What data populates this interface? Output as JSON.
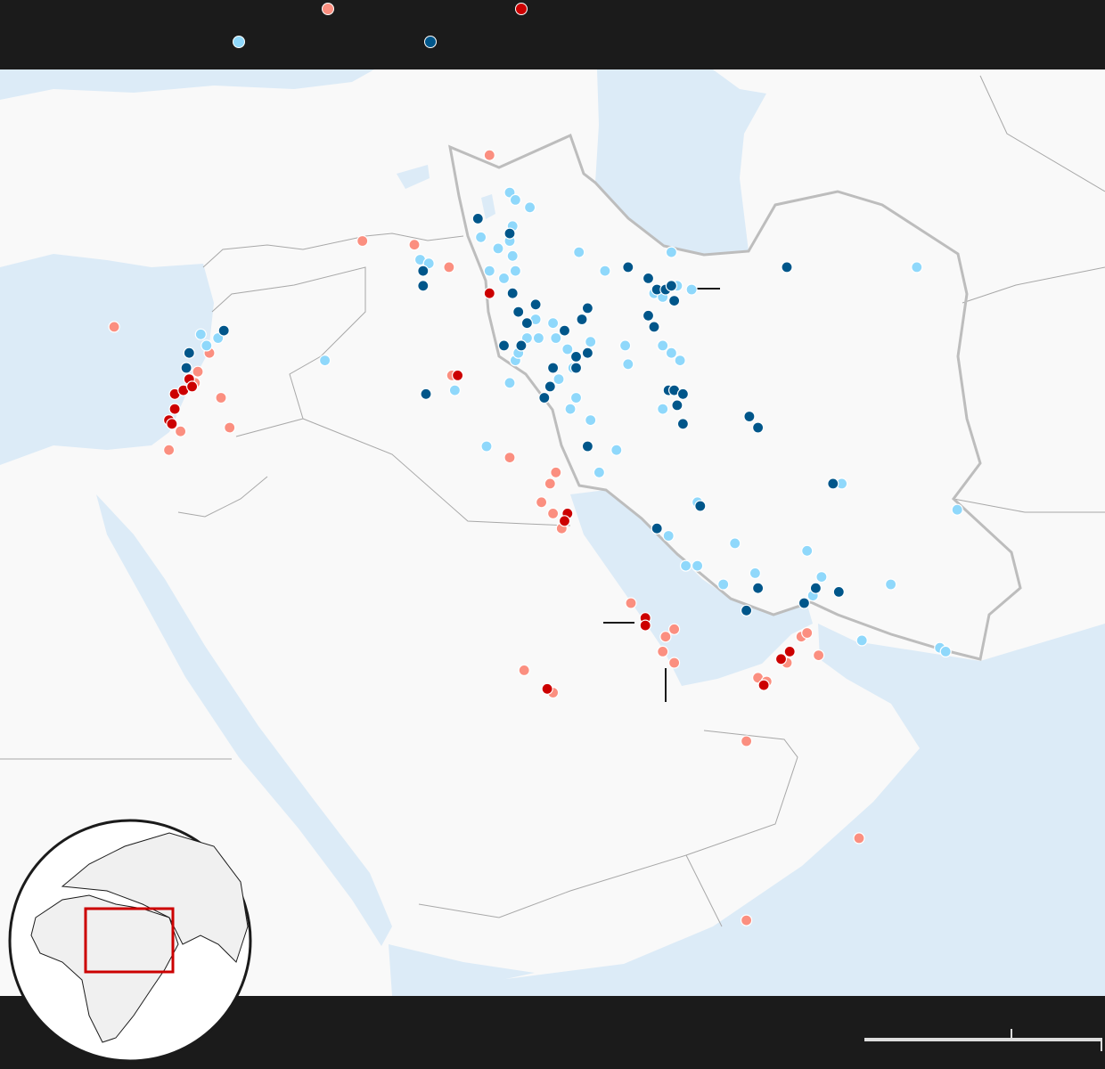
{
  "colors": {
    "water": "#dcebf7",
    "land": "#f9f9f9",
    "border": "#a8a8a8",
    "iran_border": "#bdbdbd",
    "bar_background": "#1b1b1b",
    "inset_frame": "#cc0000",
    "scale_bar": "#dddddd"
  },
  "legend": [
    {
      "key": "light_red",
      "color": "#fb8f80"
    },
    {
      "key": "red",
      "color": "#cc0000"
    },
    {
      "key": "light_blue",
      "color": "#8fd8fb"
    },
    {
      "key": "dark_blue",
      "color": "#00568a"
    }
  ],
  "chart_data": {
    "type": "scatter",
    "projection": "lon/lat",
    "extent": {
      "lon": [
        28.2,
        66.5
      ],
      "lat": [
        16.2,
        40.9
      ]
    },
    "series": [
      {
        "key": "light_red",
        "color": "#fb8f80",
        "points": [
          [
            45.2,
            39.3
          ],
          [
            40.8,
            37.0
          ],
          [
            42.6,
            36.9
          ],
          [
            43.8,
            36.3
          ],
          [
            32.2,
            34.7
          ],
          [
            35.5,
            34.0
          ],
          [
            35.9,
            32.8
          ],
          [
            36.2,
            32.0
          ],
          [
            34.5,
            31.9
          ],
          [
            34.1,
            31.4
          ],
          [
            43.9,
            33.4
          ],
          [
            45.9,
            31.2
          ],
          [
            47.5,
            30.8
          ],
          [
            47.3,
            30.5
          ],
          [
            47.0,
            30.0
          ],
          [
            47.4,
            29.7
          ],
          [
            47.7,
            29.3
          ],
          [
            50.1,
            27.3
          ],
          [
            51.3,
            26.4
          ],
          [
            51.2,
            26.0
          ],
          [
            51.6,
            25.7
          ],
          [
            51.6,
            26.6
          ],
          [
            46.4,
            25.5
          ],
          [
            47.4,
            24.9
          ],
          [
            54.5,
            25.3
          ],
          [
            54.8,
            25.2
          ],
          [
            55.5,
            25.7
          ],
          [
            56.0,
            26.4
          ],
          [
            56.2,
            26.5
          ],
          [
            56.6,
            25.9
          ],
          [
            54.1,
            23.6
          ],
          [
            58.0,
            21.0
          ],
          [
            54.1,
            18.8
          ],
          [
            35.0,
            33.2
          ],
          [
            35.1,
            33.5
          ]
        ]
      },
      {
        "key": "red",
        "color": "#cc0000",
        "points": [
          [
            45.2,
            35.6
          ],
          [
            44.1,
            33.4
          ],
          [
            34.3,
            32.9
          ],
          [
            34.6,
            33.0
          ],
          [
            34.8,
            33.3
          ],
          [
            34.9,
            33.1
          ],
          [
            34.3,
            32.5
          ],
          [
            34.1,
            32.2
          ],
          [
            34.2,
            32.1
          ],
          [
            47.9,
            29.7
          ],
          [
            47.8,
            29.5
          ],
          [
            50.6,
            26.9
          ],
          [
            50.6,
            26.7
          ],
          [
            47.2,
            25.0
          ],
          [
            54.7,
            25.1
          ],
          [
            55.3,
            25.8
          ],
          [
            55.6,
            26.0
          ]
        ]
      },
      {
        "key": "light_blue",
        "color": "#8fd8fb",
        "points": [
          [
            45.9,
            38.3
          ],
          [
            46.1,
            38.1
          ],
          [
            46.6,
            37.9
          ],
          [
            46.0,
            37.4
          ],
          [
            44.9,
            37.1
          ],
          [
            45.9,
            37.0
          ],
          [
            45.5,
            36.8
          ],
          [
            46.0,
            36.6
          ],
          [
            46.1,
            36.2
          ],
          [
            45.2,
            36.2
          ],
          [
            45.7,
            36.0
          ],
          [
            42.8,
            36.5
          ],
          [
            43.1,
            36.4
          ],
          [
            39.5,
            33.8
          ],
          [
            44.0,
            33.0
          ],
          [
            45.1,
            31.5
          ],
          [
            45.9,
            33.2
          ],
          [
            46.1,
            33.8
          ],
          [
            46.5,
            34.4
          ],
          [
            46.9,
            34.4
          ],
          [
            46.8,
            34.9
          ],
          [
            47.4,
            34.8
          ],
          [
            47.5,
            34.4
          ],
          [
            47.9,
            34.1
          ],
          [
            48.7,
            34.3
          ],
          [
            48.1,
            33.6
          ],
          [
            47.6,
            33.3
          ],
          [
            48.2,
            32.8
          ],
          [
            48.0,
            32.5
          ],
          [
            48.7,
            32.2
          ],
          [
            48.3,
            36.7
          ],
          [
            49.2,
            36.2
          ],
          [
            51.5,
            36.7
          ],
          [
            50.9,
            35.6
          ],
          [
            51.2,
            35.5
          ],
          [
            52.2,
            35.7
          ],
          [
            51.7,
            35.8
          ],
          [
            51.2,
            34.2
          ],
          [
            51.5,
            34.0
          ],
          [
            51.8,
            33.8
          ],
          [
            49.9,
            34.2
          ],
          [
            50.0,
            33.7
          ],
          [
            51.2,
            32.5
          ],
          [
            49.6,
            31.4
          ],
          [
            49.0,
            30.8
          ],
          [
            52.4,
            30.0
          ],
          [
            51.0,
            29.3
          ],
          [
            51.4,
            29.1
          ],
          [
            52.0,
            28.3
          ],
          [
            52.4,
            28.3
          ],
          [
            53.7,
            28.9
          ],
          [
            53.3,
            27.8
          ],
          [
            54.4,
            28.1
          ],
          [
            56.2,
            28.7
          ],
          [
            56.7,
            28.0
          ],
          [
            56.4,
            27.5
          ],
          [
            59.1,
            27.8
          ],
          [
            58.1,
            26.3
          ],
          [
            57.4,
            30.5
          ],
          [
            60.0,
            36.3
          ],
          [
            61.4,
            29.8
          ],
          [
            60.8,
            26.1
          ],
          [
            61.0,
            26.0
          ],
          [
            35.2,
            34.5
          ],
          [
            35.4,
            34.2
          ],
          [
            35.8,
            34.4
          ],
          [
            46.2,
            34.0
          ]
        ]
      },
      {
        "key": "dark_blue",
        "color": "#00568a",
        "points": [
          [
            44.8,
            37.6
          ],
          [
            45.9,
            37.2
          ],
          [
            42.9,
            36.2
          ],
          [
            42.9,
            35.8
          ],
          [
            46.0,
            35.6
          ],
          [
            46.8,
            35.3
          ],
          [
            46.2,
            35.1
          ],
          [
            46.5,
            34.8
          ],
          [
            48.6,
            35.2
          ],
          [
            48.4,
            34.9
          ],
          [
            47.8,
            34.6
          ],
          [
            45.7,
            34.2
          ],
          [
            46.3,
            34.2
          ],
          [
            48.2,
            33.9
          ],
          [
            48.6,
            34.0
          ],
          [
            47.4,
            33.6
          ],
          [
            48.2,
            33.6
          ],
          [
            47.3,
            33.1
          ],
          [
            47.1,
            32.8
          ],
          [
            43.0,
            32.9
          ],
          [
            50.0,
            36.3
          ],
          [
            50.7,
            36.0
          ],
          [
            51.0,
            35.7
          ],
          [
            51.3,
            35.7
          ],
          [
            51.6,
            35.4
          ],
          [
            51.5,
            35.8
          ],
          [
            50.9,
            34.7
          ],
          [
            50.7,
            35.0
          ],
          [
            51.4,
            33.0
          ],
          [
            51.6,
            33.0
          ],
          [
            51.9,
            32.9
          ],
          [
            51.7,
            32.6
          ],
          [
            51.9,
            32.1
          ],
          [
            54.2,
            32.3
          ],
          [
            54.5,
            32.0
          ],
          [
            48.6,
            31.5
          ],
          [
            52.5,
            29.9
          ],
          [
            51.0,
            29.3
          ],
          [
            54.5,
            27.7
          ],
          [
            54.1,
            27.1
          ],
          [
            56.1,
            27.3
          ],
          [
            56.5,
            27.7
          ],
          [
            57.3,
            27.6
          ],
          [
            57.1,
            30.5
          ],
          [
            55.5,
            36.3
          ],
          [
            36.0,
            34.6
          ],
          [
            34.8,
            34.0
          ],
          [
            34.7,
            33.6
          ]
        ]
      }
    ],
    "grid": false,
    "legend_placement": "top"
  }
}
